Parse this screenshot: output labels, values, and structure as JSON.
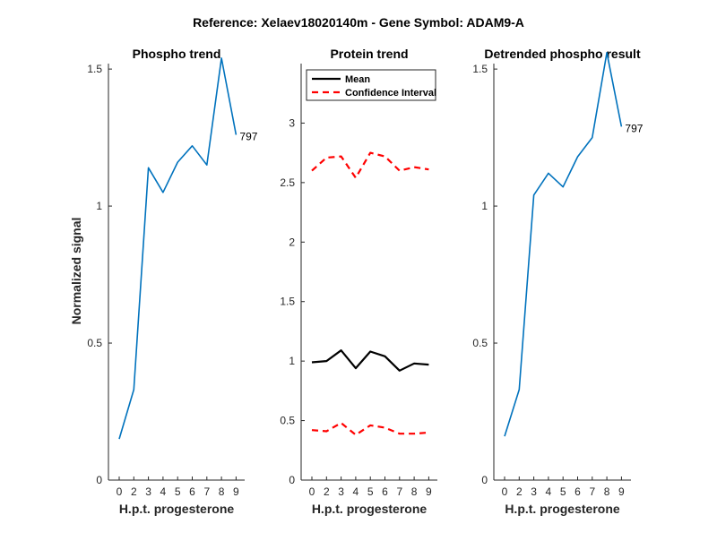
{
  "figure": {
    "suptitle": "Reference:  Xelaev18020140m - Gene Symbol:  ADAM9-A"
  },
  "chart_data": [
    {
      "type": "line",
      "title": "Phospho trend",
      "xlabel": "H.p.t. progesterone",
      "ylabel": "Normalized signal",
      "categories": [
        "0",
        "2",
        "3",
        "4",
        "5",
        "6",
        "7",
        "8",
        "9"
      ],
      "ylim": [
        0,
        1.52
      ],
      "yticks": [
        0,
        0.5,
        1,
        1.5
      ],
      "yticklabels": [
        "0",
        "0.5",
        "1",
        "1.5"
      ],
      "series": [
        {
          "values": [
            0.15,
            0.33,
            1.14,
            1.05,
            1.16,
            1.22,
            1.15,
            1.54,
            1.26
          ],
          "color": "#0072BD"
        }
      ],
      "annotation": "797"
    },
    {
      "type": "line",
      "title": "Protein trend",
      "xlabel": "H.p.t. progesterone",
      "categories": [
        "0",
        "2",
        "3",
        "4",
        "5",
        "6",
        "7",
        "8",
        "9"
      ],
      "ylim": [
        0,
        3.5
      ],
      "yticks": [
        0,
        0.5,
        1,
        1.5,
        2,
        2.5,
        3
      ],
      "yticklabels": [
        "0",
        "0.5",
        "1",
        "1.5",
        "2",
        "2.5",
        "3"
      ],
      "legend": {
        "placement": "top-left"
      },
      "series": [
        {
          "name": "Mean",
          "values": [
            0.99,
            1.0,
            1.09,
            0.94,
            1.08,
            1.04,
            0.92,
            0.98,
            0.97
          ],
          "color": "#000000",
          "style": "solid"
        },
        {
          "name": "Confidence Interval",
          "values": [
            2.6,
            2.71,
            2.72,
            2.54,
            2.75,
            2.72,
            2.6,
            2.63,
            2.61
          ],
          "color": "#FF0000",
          "style": "dashed"
        },
        {
          "values": [
            0.42,
            0.41,
            0.48,
            0.38,
            0.46,
            0.44,
            0.39,
            0.39,
            0.4
          ],
          "color": "#FF0000",
          "style": "dashed"
        }
      ]
    },
    {
      "type": "line",
      "title": "Detrended phospho result",
      "xlabel": "H.p.t. progesterone",
      "categories": [
        "0",
        "2",
        "3",
        "4",
        "5",
        "6",
        "7",
        "8",
        "9"
      ],
      "ylim": [
        0,
        1.52
      ],
      "yticks": [
        0,
        0.5,
        1,
        1.5
      ],
      "yticklabels": [
        "0",
        "0.5",
        "1",
        "1.5"
      ],
      "series": [
        {
          "values": [
            0.16,
            0.33,
            1.04,
            1.12,
            1.07,
            1.18,
            1.25,
            1.56,
            1.29
          ],
          "color": "#0072BD"
        }
      ],
      "annotation": "797"
    }
  ]
}
